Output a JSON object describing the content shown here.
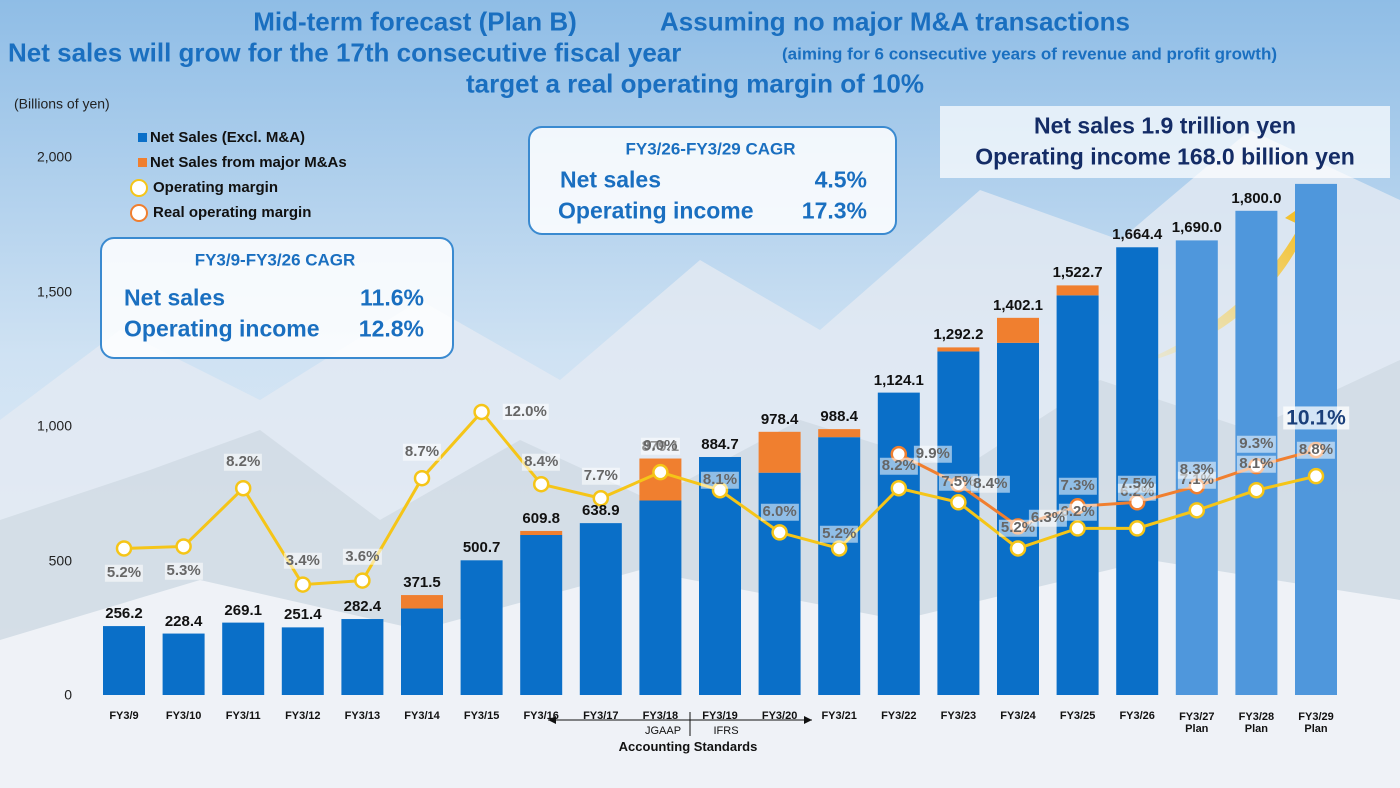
{
  "chart_data": {
    "type": "bar",
    "title": [
      "Mid-term forecast (Plan B)",
      "Assuming no major M&A transactions"
    ],
    "subtitle": "Net sales will grow for the 17th consecutive fiscal year",
    "subtitle_note": "(aiming for 6 consecutive years of revenue and profit growth)",
    "subtitle2": "target a real operating margin of 10%",
    "y_label": "(Billions of yen)",
    "categories": [
      "FY3/9",
      "FY3/10",
      "FY3/11",
      "FY3/12",
      "FY3/13",
      "FY3/14",
      "FY3/15",
      "FY3/16",
      "FY3/17",
      "FY3/18",
      "FY3/19",
      "FY3/20",
      "FY3/21",
      "FY3/22",
      "FY3/23",
      "FY3/24",
      "FY3/25",
      "FY3/26",
      "FY3/27\nPlan",
      "FY3/28\nPlan",
      "FY3/29\nPlan"
    ],
    "ylim": [
      0,
      2000
    ],
    "yticks": [
      0,
      500,
      {
        "value": 1000,
        "label": "1,000"
      },
      {
        "value": 1500,
        "label": "1,500"
      },
      {
        "value": 2000,
        "label": "2,000"
      }
    ],
    "y2lim": [
      -2.1,
      24.7
    ],
    "series": [
      {
        "name": "Net Sales (Excl. M&A)",
        "color": "#0a6fc8",
        "colors": [
          "#0a6fc8",
          "#0a6fc8",
          "#0a6fc8",
          "#0a6fc8",
          "#0a6fc8",
          "#0a6fc8",
          "#0a6fc8",
          "#0a6fc8",
          "#0a6fc8",
          "#0a6fc8",
          "#0a6fc8",
          "#0a6fc8",
          "#0a6fc8",
          "#0a6fc8",
          "#0a6fc8",
          "#0a6fc8",
          "#0a6fc8",
          "#0a6fc8",
          "#4f97dc",
          "#4f97dc",
          "#4f97dc"
        ],
        "values": [
          256.2,
          228.4,
          269.1,
          251.4,
          282.4,
          321.5,
          500.7,
          594.8,
          638.9,
          723.1,
          884.7,
          826.4,
          958.4,
          1124.1,
          1277.2,
          1309.1,
          1485.7,
          1664.4,
          1690.0,
          1800.0,
          1900
        ]
      },
      {
        "name": "Net Sales from major M&As",
        "color": "#f07f2f",
        "values": [
          null,
          null,
          null,
          null,
          null,
          50,
          null,
          15,
          null,
          156,
          null,
          152,
          30,
          null,
          15,
          93,
          37,
          null,
          null,
          null,
          null
        ]
      },
      {
        "name": "Operating margin",
        "color": "#f5c518",
        "axis": "y2",
        "values": [
          5.2,
          5.3,
          8.2,
          3.4,
          3.6,
          8.7,
          12.0,
          8.4,
          7.7,
          9.0,
          8.1,
          6.0,
          5.2,
          8.2,
          7.5,
          5.2,
          6.2,
          6.2,
          7.1,
          8.1,
          8.8
        ],
        "value_labels": [
          "5.2%",
          "5.3%",
          "8.2%",
          "3.4%",
          "3.6%",
          "8.7%",
          "12.0%",
          "8.4%",
          "7.7%",
          "9.0%",
          "8.1%",
          "6.0%",
          "5.2%",
          "8.2%",
          "7.5%",
          "5.2%",
          "6.2%",
          "6.2%",
          "7.1%",
          "8.1%",
          "8.8%"
        ]
      },
      {
        "name": "Real operating margin",
        "color": "#f07f2f",
        "axis": "y2",
        "values": [
          null,
          null,
          null,
          null,
          null,
          null,
          null,
          null,
          null,
          null,
          null,
          null,
          null,
          9.9,
          8.4,
          6.3,
          7.3,
          7.5,
          8.3,
          9.3,
          10.1
        ],
        "value_labels": [
          null,
          null,
          null,
          null,
          null,
          null,
          null,
          null,
          null,
          null,
          null,
          null,
          null,
          "9.9%",
          "8.4%",
          "6.3%",
          "7.3%",
          "7.5%",
          "8.3%",
          "9.3%",
          "10.1%"
        ]
      }
    ],
    "totals": {
      "values": [
        256.2,
        228.4,
        269.1,
        251.4,
        282.4,
        371.5,
        500.7,
        609.8,
        638.9,
        879.1,
        884.7,
        978.4,
        988.4,
        1124.1,
        1292.2,
        1402.1,
        1522.7,
        1664.4,
        1690.0,
        1800.0,
        null
      ],
      "value_labels": [
        "256.2",
        "228.4",
        "269.1",
        "251.4",
        "282.4",
        "371.5",
        "500.7",
        "609.8",
        "638.9",
        "879.1",
        "884.7",
        "978.4",
        "988.4",
        "1,124.1",
        "1,292.2",
        "1,402.1",
        "1,522.7",
        "1,664.4",
        "1,690.0",
        "1,800.0",
        null
      ]
    },
    "boxes": [
      {
        "title": "FY3/9-FY3/26 CAGR",
        "rows": [
          [
            "Net sales",
            "11.6%"
          ],
          [
            "Operating income",
            "12.8%"
          ]
        ]
      },
      {
        "title": "FY3/26-FY3/29 CAGR",
        "rows": [
          [
            "Net sales",
            "4.5%"
          ],
          [
            "Operating income",
            "17.3%"
          ]
        ]
      }
    ],
    "target": [
      "Net sales 1.9 trillion yen",
      "Operating income 168.0 billion yen"
    ],
    "accounting": {
      "left": "JGAAP",
      "right": "IFRS",
      "label": "Accounting Standards"
    }
  }
}
